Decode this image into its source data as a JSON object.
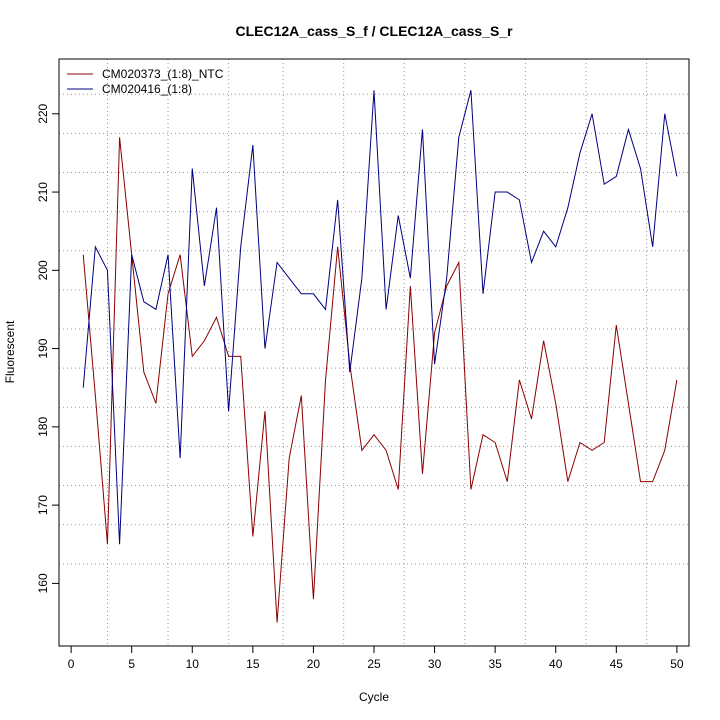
{
  "chart_data": {
    "type": "line",
    "title": "CLEC12A_cass_S_f / CLEC12A_cass_S_r",
    "xlabel": "Cycle",
    "ylabel": "Fluorescent",
    "xlim": [
      -1,
      51
    ],
    "ylim": [
      152,
      227
    ],
    "xticks": [
      0,
      5,
      10,
      15,
      20,
      25,
      30,
      35,
      40,
      45,
      50
    ],
    "yticks": [
      160,
      170,
      180,
      190,
      200,
      210,
      220
    ],
    "vgrid": [
      3,
      8,
      13,
      17.5,
      22.5,
      27.5,
      32.5,
      37.5,
      42.5,
      47.5
    ],
    "hgrid": [
      162.5,
      167.5,
      172.5,
      177.5,
      182.5,
      187.5,
      192.5,
      197.5,
      202.5,
      207.5,
      212.5,
      217.5,
      222.5
    ],
    "legend_position": "top-left",
    "series": [
      {
        "name": "CM020373_(1:8)_NTC",
        "color": "#8b0000",
        "x": [
          1,
          2,
          3,
          4,
          5,
          6,
          7,
          8,
          9,
          10,
          11,
          12,
          13,
          14,
          15,
          16,
          17,
          18,
          19,
          20,
          21,
          22,
          23,
          24,
          25,
          26,
          27,
          28,
          29,
          30,
          31,
          32,
          33,
          34,
          35,
          36,
          37,
          38,
          39,
          40,
          41,
          42,
          43,
          44,
          45,
          46,
          47,
          48,
          49,
          50
        ],
        "values": [
          202,
          184,
          165,
          217,
          202,
          187,
          183,
          197,
          202,
          189,
          191,
          194,
          189,
          189,
          166,
          182,
          155,
          176,
          184,
          158,
          186,
          203,
          188,
          177,
          179,
          177,
          172,
          198,
          174,
          192,
          198,
          201,
          172,
          179,
          178,
          173,
          186,
          181,
          191,
          183,
          173,
          178,
          177,
          178,
          193,
          183,
          173,
          173,
          177,
          186
        ]
      },
      {
        "name": "CM020416_(1:8)",
        "color": "#00007f",
        "x": [
          1,
          2,
          3,
          4,
          5,
          6,
          7,
          8,
          9,
          10,
          11,
          12,
          13,
          14,
          15,
          16,
          17,
          18,
          19,
          20,
          21,
          22,
          23,
          24,
          25,
          26,
          27,
          28,
          29,
          30,
          31,
          32,
          33,
          34,
          35,
          36,
          37,
          38,
          39,
          40,
          41,
          42,
          43,
          44,
          45,
          46,
          47,
          48,
          49,
          50
        ],
        "values": [
          185,
          203,
          200,
          165,
          202,
          196,
          195,
          202,
          176,
          213,
          198,
          208,
          182,
          203,
          216,
          190,
          201,
          199,
          197,
          197,
          195,
          209,
          187,
          199,
          223,
          195,
          207,
          199,
          218,
          188,
          199,
          217,
          223,
          197,
          210,
          210,
          209,
          201,
          205,
          203,
          208,
          215,
          220,
          211,
          212,
          218,
          213,
          203,
          220,
          212
        ]
      }
    ]
  }
}
